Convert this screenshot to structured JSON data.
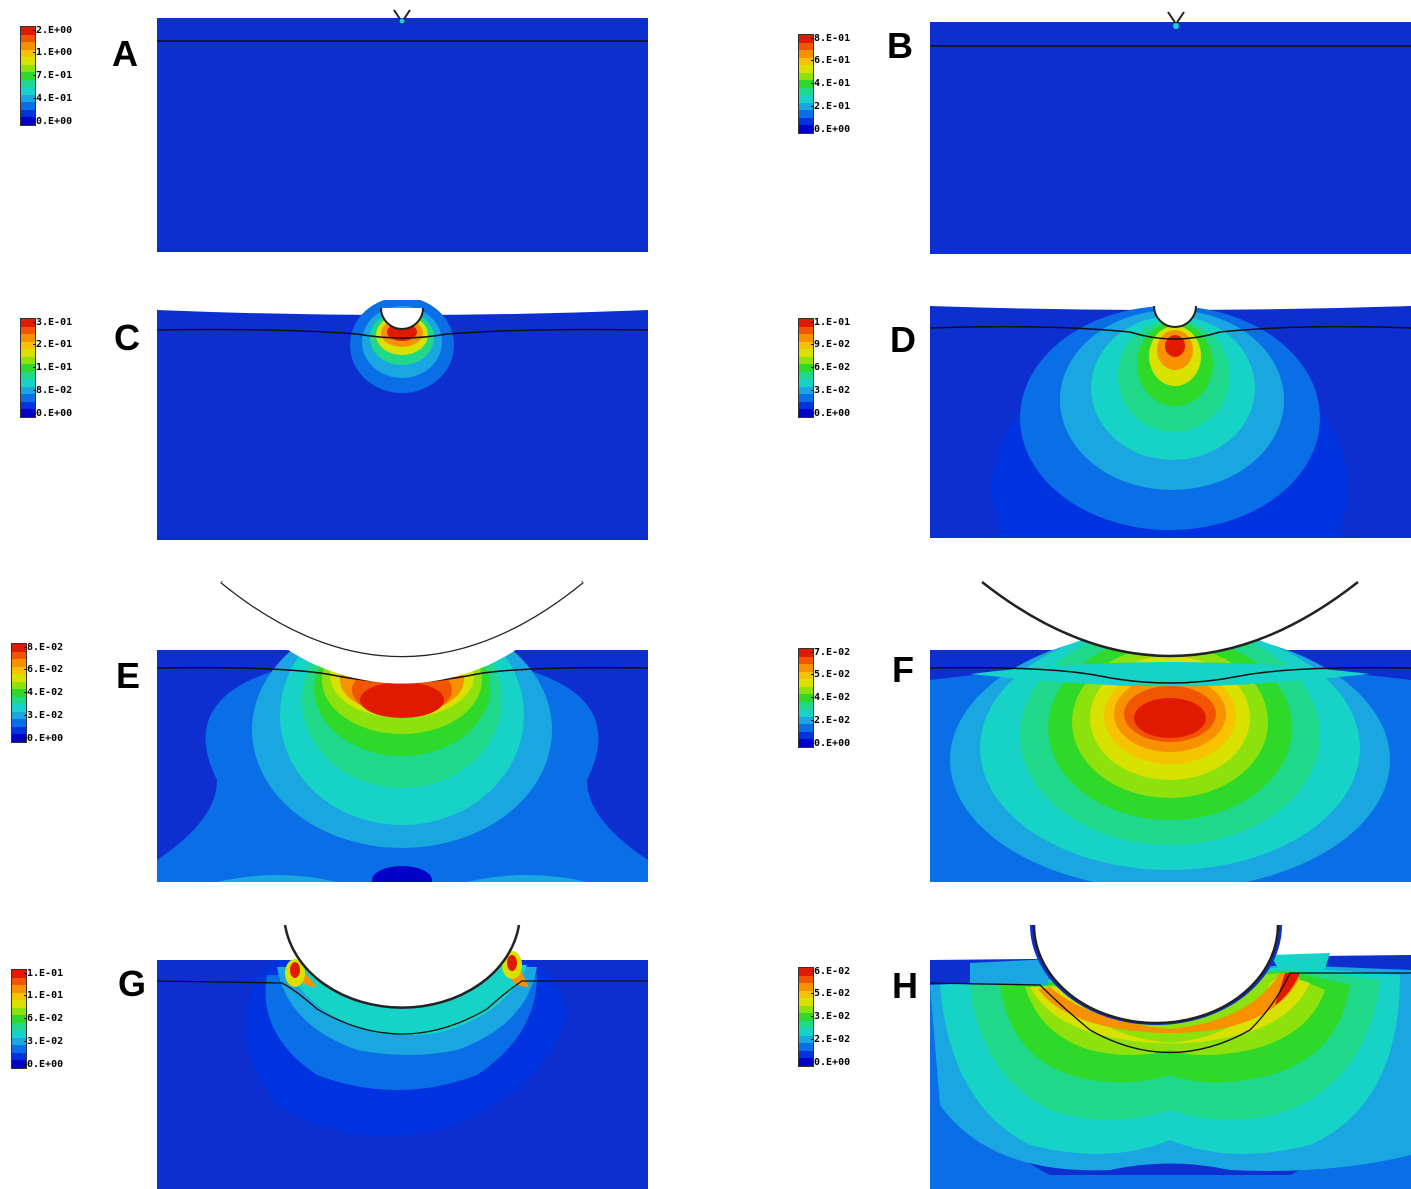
{
  "colors": {
    "scale": [
      "#0000c8",
      "#0033e0",
      "#0a6ee6",
      "#1aa6e0",
      "#17d2c6",
      "#1fd88a",
      "#2fd92a",
      "#8de10d",
      "#d8e100",
      "#f7c300",
      "#f79100",
      "#f25500",
      "#e01a00"
    ],
    "background": "#0d2fd0"
  },
  "panels": [
    {
      "letter": "A",
      "ticks": [
        "2.E+00",
        "1.E+00",
        "7.E-01",
        "4.E-01",
        "0.E+00"
      ]
    },
    {
      "letter": "B",
      "ticks": [
        "8.E-01",
        "6.E-01",
        "4.E-01",
        "2.E-01",
        "0.E+00"
      ]
    },
    {
      "letter": "C",
      "ticks": [
        "3.E-01",
        "2.E-01",
        "1.E-01",
        "8.E-02",
        "0.E+00"
      ]
    },
    {
      "letter": "D",
      "ticks": [
        "1.E-01",
        "9.E-02",
        "6.E-02",
        "3.E-02",
        "0.E+00"
      ]
    },
    {
      "letter": "E",
      "ticks": [
        "8.E-02",
        "6.E-02",
        "4.E-02",
        "3.E-02",
        "0.E+00"
      ]
    },
    {
      "letter": "F",
      "ticks": [
        "7.E-02",
        "5.E-02",
        "4.E-02",
        "2.E-02",
        "0.E+00"
      ]
    },
    {
      "letter": "G",
      "ticks": [
        "1.E-01",
        "1.E-01",
        "6.E-02",
        "3.E-02",
        "0.E+00"
      ]
    },
    {
      "letter": "H",
      "ticks": [
        "6.E-02",
        "5.E-02",
        "3.E-02",
        "2.E-02",
        "0.E+00"
      ]
    }
  ]
}
